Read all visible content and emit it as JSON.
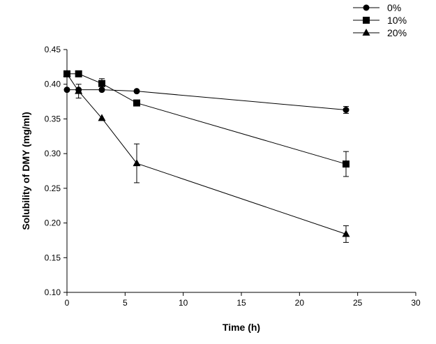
{
  "chart_data": {
    "type": "line",
    "title": "",
    "xlabel": "Time (h)",
    "ylabel": "Solubility of DMY (mg/ml)",
    "xlim": [
      0,
      30
    ],
    "ylim": [
      0.1,
      0.45
    ],
    "xticks": [
      "0",
      "5",
      "10",
      "15",
      "20",
      "25",
      "30"
    ],
    "yticks": [
      "0.10",
      "0.15",
      "0.20",
      "0.25",
      "0.30",
      "0.35",
      "0.40",
      "0.45"
    ],
    "grid": false,
    "legend_position": "top-right",
    "x": [
      0,
      1,
      3,
      6,
      24
    ],
    "series": [
      {
        "name": "0%",
        "marker": "circle",
        "values": [
          0.392,
          0.392,
          0.392,
          0.39,
          0.363
        ],
        "errors": [
          0,
          0,
          0,
          0,
          0.005
        ]
      },
      {
        "name": "10%",
        "marker": "square",
        "values": [
          0.415,
          0.415,
          0.401,
          0.373,
          0.285
        ],
        "errors": [
          0,
          0,
          0.007,
          0,
          0.018
        ]
      },
      {
        "name": "20%",
        "marker": "triangle",
        "values": [
          0.415,
          0.39,
          0.351,
          0.286,
          0.184
        ],
        "errors": [
          0,
          0.01,
          0,
          0.028,
          0.012
        ]
      }
    ]
  }
}
